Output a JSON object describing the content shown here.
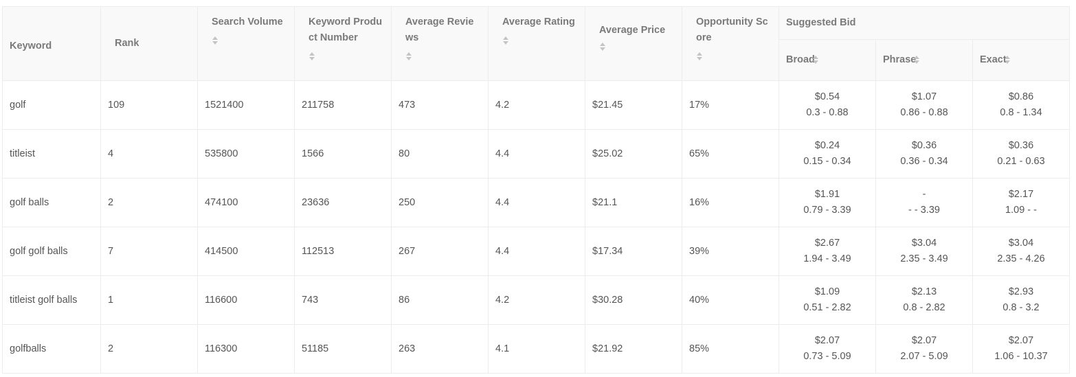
{
  "table": {
    "headers": {
      "keyword": "Keyword",
      "rank": "Rank",
      "search_volume": "Search Volume",
      "keyword_product_number": "Keyword Product Number",
      "average_reviews": "Average Reviews",
      "average_rating": "Average Rating",
      "average_price": "Average Price",
      "opportunity_score": "Opportunity Score",
      "suggested_bid": "Suggested Bid",
      "broad": "Broad",
      "phrase": "Phrase",
      "exact": "Exact"
    },
    "rows": [
      {
        "keyword": "golf",
        "rank": "109",
        "search_volume": "1521400",
        "product_number": "211758",
        "avg_reviews": "473",
        "avg_rating": "4.2",
        "avg_price": "$21.45",
        "opportunity": "17%",
        "broad": {
          "bid": "$0.54",
          "range": "0.3 - 0.88"
        },
        "phrase": {
          "bid": "$1.07",
          "range": "0.86 - 0.88"
        },
        "exact": {
          "bid": "$0.86",
          "range": "0.8 - 1.34"
        }
      },
      {
        "keyword": "titleist",
        "rank": "4",
        "search_volume": "535800",
        "product_number": "1566",
        "avg_reviews": "80",
        "avg_rating": "4.4",
        "avg_price": "$25.02",
        "opportunity": "65%",
        "broad": {
          "bid": "$0.24",
          "range": "0.15 - 0.34"
        },
        "phrase": {
          "bid": "$0.36",
          "range": "0.36 - 0.34"
        },
        "exact": {
          "bid": "$0.36",
          "range": "0.21 - 0.63"
        }
      },
      {
        "keyword": "golf balls",
        "rank": "2",
        "search_volume": "474100",
        "product_number": "23636",
        "avg_reviews": "250",
        "avg_rating": "4.4",
        "avg_price": "$21.1",
        "opportunity": "16%",
        "broad": {
          "bid": "$1.91",
          "range": "0.79 - 3.39"
        },
        "phrase": {
          "bid": "-",
          "range": "- - 3.39"
        },
        "exact": {
          "bid": "$2.17",
          "range": "1.09 - -"
        }
      },
      {
        "keyword": "golf golf balls",
        "rank": "7",
        "search_volume": "414500",
        "product_number": "112513",
        "avg_reviews": "267",
        "avg_rating": "4.4",
        "avg_price": "$17.34",
        "opportunity": "39%",
        "broad": {
          "bid": "$2.67",
          "range": "1.94 - 3.49"
        },
        "phrase": {
          "bid": "$3.04",
          "range": "2.35 - 3.49"
        },
        "exact": {
          "bid": "$3.04",
          "range": "2.35 - 4.26"
        }
      },
      {
        "keyword": "titleist golf balls",
        "rank": "1",
        "search_volume": "116600",
        "product_number": "743",
        "avg_reviews": "86",
        "avg_rating": "4.2",
        "avg_price": "$30.28",
        "opportunity": "40%",
        "broad": {
          "bid": "$1.09",
          "range": "0.51 - 2.82"
        },
        "phrase": {
          "bid": "$2.13",
          "range": "0.8 - 2.82"
        },
        "exact": {
          "bid": "$2.93",
          "range": "0.8 - 3.2"
        }
      },
      {
        "keyword": "golfballs",
        "rank": "2",
        "search_volume": "116300",
        "product_number": "51185",
        "avg_reviews": "263",
        "avg_rating": "4.1",
        "avg_price": "$21.92",
        "opportunity": "85%",
        "broad": {
          "bid": "$2.07",
          "range": "0.73 - 5.09"
        },
        "phrase": {
          "bid": "$2.07",
          "range": "2.07 - 5.09"
        },
        "exact": {
          "bid": "$2.07",
          "range": "1.06 - 10.37"
        }
      }
    ]
  }
}
